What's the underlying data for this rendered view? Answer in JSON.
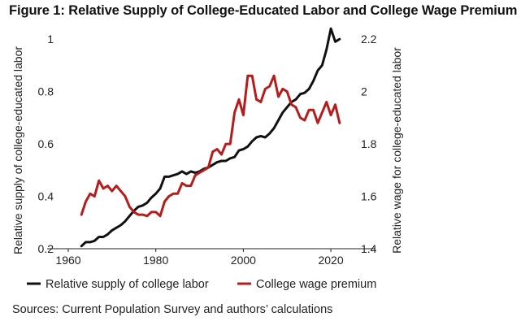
{
  "title": "Figure 1: Relative Supply of College-Educated Labor and College Wage Premium",
  "source": "Sources: Current Population Survey and authors’ calculations",
  "chart_data": {
    "type": "line",
    "title": "Figure 1: Relative Supply of College-Educated Labor and College Wage Premium",
    "xlabel": "",
    "xlim": [
      1960,
      2025
    ],
    "x_ticks": [
      "1960",
      "1980",
      "2000",
      "2020"
    ],
    "y_left_label": "Relative supply of college-educated labor",
    "y_left_lim": [
      0.2,
      1.05
    ],
    "y_left_ticks": [
      "0.2",
      "0.4",
      "0.6",
      "0.8",
      "1"
    ],
    "y_right_label": "Relative wage for college-educated labor",
    "y_right_lim": [
      1.4,
      2.25
    ],
    "y_right_ticks": [
      "1.4",
      "1.6",
      "1.8",
      "2",
      "2.2"
    ],
    "colors": {
      "supply": "#111111",
      "premium": "#b71c1c"
    },
    "series": [
      {
        "name": "Relative supply of college labor",
        "axis": "left",
        "x": [
          1963,
          1964,
          1965,
          1966,
          1967,
          1968,
          1969,
          1970,
          1971,
          1972,
          1973,
          1974,
          1975,
          1976,
          1977,
          1978,
          1979,
          1980,
          1981,
          1982,
          1983,
          1984,
          1985,
          1986,
          1987,
          1988,
          1989,
          1990,
          1991,
          1992,
          1993,
          1994,
          1995,
          1996,
          1997,
          1998,
          1999,
          2000,
          2001,
          2002,
          2003,
          2004,
          2005,
          2006,
          2007,
          2008,
          2009,
          2010,
          2011,
          2012,
          2013,
          2014,
          2015,
          2016,
          2017,
          2018,
          2019,
          2020,
          2021,
          2022
        ],
        "y": [
          0.21,
          0.225,
          0.225,
          0.23,
          0.245,
          0.245,
          0.255,
          0.27,
          0.28,
          0.29,
          0.305,
          0.325,
          0.345,
          0.36,
          0.365,
          0.375,
          0.395,
          0.41,
          0.43,
          0.475,
          0.475,
          0.48,
          0.485,
          0.495,
          0.485,
          0.495,
          0.49,
          0.495,
          0.505,
          0.51,
          0.52,
          0.53,
          0.535,
          0.535,
          0.545,
          0.55,
          0.575,
          0.58,
          0.59,
          0.61,
          0.625,
          0.63,
          0.625,
          0.64,
          0.66,
          0.69,
          0.72,
          0.74,
          0.76,
          0.77,
          0.79,
          0.795,
          0.81,
          0.84,
          0.88,
          0.9,
          0.96,
          1.04,
          0.99,
          1.0
        ]
      },
      {
        "name": "College wage premium",
        "axis": "right",
        "x": [
          1963,
          1964,
          1965,
          1966,
          1967,
          1968,
          1969,
          1970,
          1971,
          1972,
          1973,
          1974,
          1975,
          1976,
          1977,
          1978,
          1979,
          1980,
          1981,
          1982,
          1983,
          1984,
          1985,
          1986,
          1987,
          1988,
          1989,
          1990,
          1991,
          1992,
          1993,
          1994,
          1995,
          1996,
          1997,
          1998,
          1999,
          2000,
          2001,
          2002,
          2003,
          2004,
          2005,
          2006,
          2007,
          2008,
          2009,
          2010,
          2011,
          2012,
          2013,
          2014,
          2015,
          2016,
          2017,
          2018,
          2019,
          2020,
          2021,
          2022
        ],
        "y": [
          1.53,
          1.58,
          1.61,
          1.6,
          1.66,
          1.63,
          1.64,
          1.62,
          1.64,
          1.62,
          1.6,
          1.56,
          1.54,
          1.53,
          1.53,
          1.525,
          1.54,
          1.54,
          1.525,
          1.58,
          1.6,
          1.61,
          1.61,
          1.65,
          1.64,
          1.64,
          1.68,
          1.69,
          1.7,
          1.71,
          1.77,
          1.78,
          1.76,
          1.8,
          1.8,
          1.92,
          1.97,
          1.91,
          2.06,
          2.06,
          1.97,
          1.96,
          2.01,
          2.02,
          2.06,
          1.98,
          2.01,
          2.0,
          1.95,
          1.94,
          1.9,
          1.89,
          1.93,
          1.93,
          1.88,
          1.92,
          1.96,
          1.91,
          1.95,
          1.88
        ]
      }
    ],
    "legend": [
      {
        "label": "Relative supply of college labor"
      },
      {
        "label": "College wage premium"
      }
    ],
    "legend_position": "bottom"
  }
}
